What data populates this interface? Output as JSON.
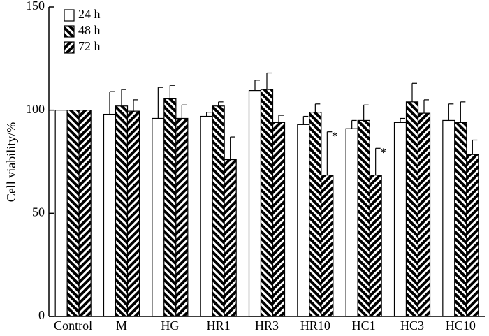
{
  "chart_data": {
    "type": "bar",
    "y_label": "Cell viability/%",
    "categories": [
      "Control",
      "M",
      "HG",
      "HR1",
      "HR3",
      "HR10",
      "HC1",
      "HC3",
      "HC10"
    ],
    "series": [
      {
        "name": "24 h",
        "color": "#ffffff",
        "pattern": "none",
        "values": [
          100,
          98,
          96,
          97,
          109.5,
          93,
          91,
          94,
          95
        ],
        "errors": [
          0,
          11,
          15,
          2,
          5,
          4,
          4,
          2,
          8
        ]
      },
      {
        "name": "48 h",
        "color": "#000000",
        "pattern": "backslash",
        "values": [
          100,
          102,
          105.5,
          102,
          110,
          99,
          95,
          104,
          94
        ],
        "errors": [
          0,
          8,
          6.5,
          2,
          8,
          4,
          7.5,
          9,
          10
        ]
      },
      {
        "name": "72 h",
        "color": "#000000",
        "pattern": "slash",
        "values": [
          100,
          99.5,
          96,
          76,
          94,
          68.5,
          68.5,
          98.5,
          78.5
        ],
        "errors": [
          0,
          5.5,
          6.5,
          11,
          3.5,
          21,
          13,
          6.5,
          7
        ],
        "annotations": [
          null,
          null,
          null,
          null,
          null,
          "*",
          "*",
          null,
          null
        ]
      }
    ],
    "ylim": [
      0,
      150
    ],
    "yticks": [
      0,
      50,
      100,
      150
    ],
    "legend": "top-left",
    "grid": false
  }
}
